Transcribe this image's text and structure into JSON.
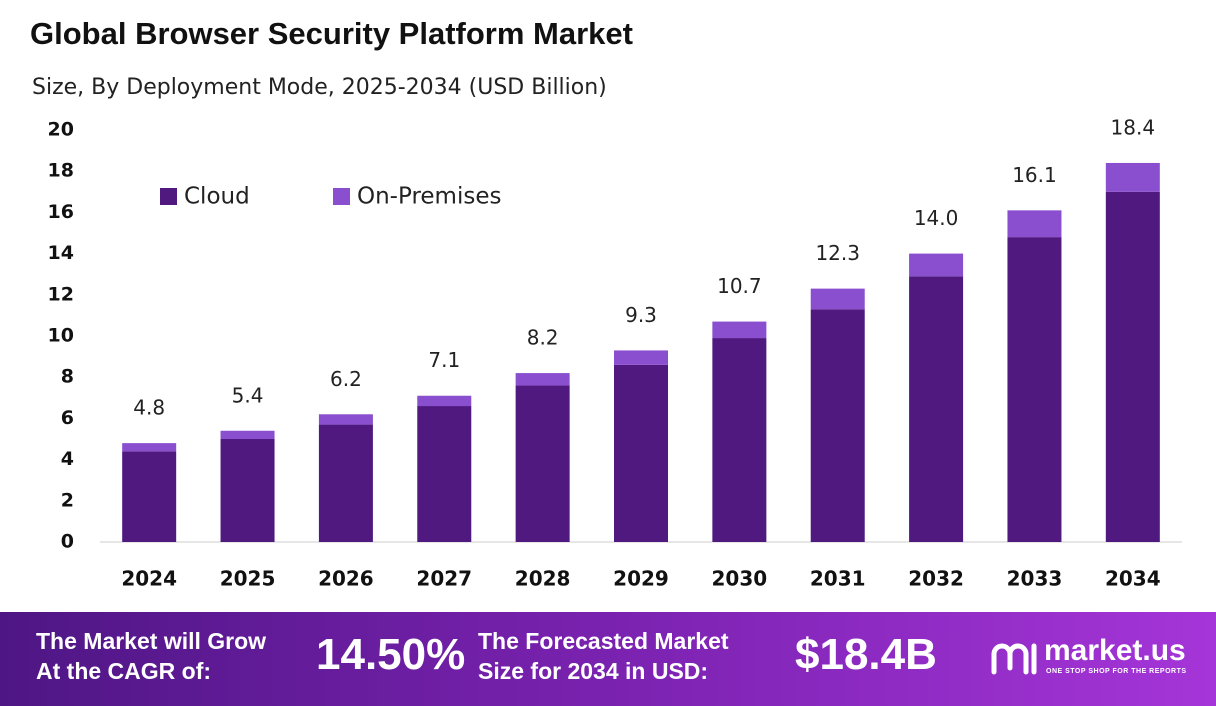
{
  "chart_data": {
    "type": "stacked_bar",
    "title": "Global Browser Security Platform Market",
    "subtitle": "Size, By Deployment Mode, 2025-2034 (USD Billion)",
    "categories": [
      "2024",
      "2025",
      "2026",
      "2027",
      "2028",
      "2029",
      "2030",
      "2031",
      "2032",
      "2033",
      "2034"
    ],
    "series": [
      {
        "name": "Cloud",
        "color": "#4f1980",
        "values": [
          4.4,
          5.0,
          5.7,
          6.6,
          7.6,
          8.6,
          9.9,
          11.3,
          12.9,
          14.8,
          17.0
        ]
      },
      {
        "name": "On-Premises",
        "color": "#8a4fcf",
        "values": [
          0.4,
          0.4,
          0.5,
          0.5,
          0.6,
          0.7,
          0.8,
          1.0,
          1.1,
          1.3,
          1.4
        ]
      }
    ],
    "totals": [
      4.8,
      5.4,
      6.2,
      7.1,
      8.2,
      9.3,
      10.7,
      12.3,
      14.0,
      16.1,
      18.4
    ],
    "total_labels": [
      "4.8",
      "5.4",
      "6.2",
      "7.1",
      "8.2",
      "9.3",
      "10.7",
      "12.3",
      "14.0",
      "16.1",
      "18.4"
    ],
    "ylim": [
      0,
      20
    ],
    "yticks": [
      0,
      2,
      4,
      6,
      8,
      10,
      12,
      14,
      16,
      18,
      20
    ],
    "grid": false,
    "legend": "top-left"
  },
  "footer": {
    "cagr_label": [
      "The Market will Grow",
      "At the CAGR of:"
    ],
    "cagr_value": "14.50%",
    "forecast_label": [
      "The Forecasted Market",
      "Size for 2034 in USD:"
    ],
    "forecast_value": "$18.4B",
    "logo": "market.us",
    "tagline": "ONE STOP SHOP FOR THE REPORTS"
  }
}
